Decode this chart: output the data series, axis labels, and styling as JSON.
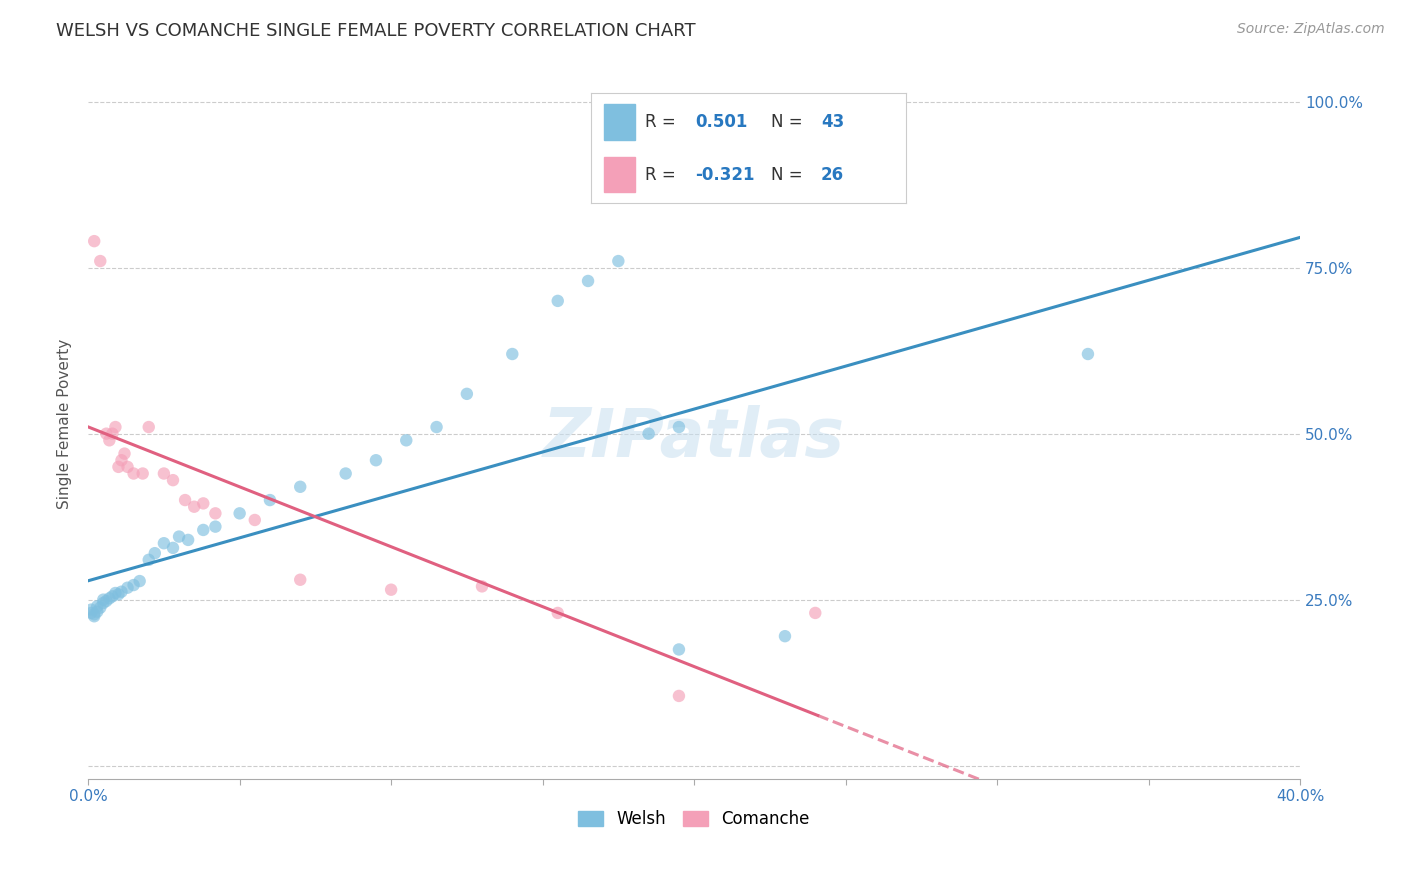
{
  "title": "WELSH VS COMANCHE SINGLE FEMALE POVERTY CORRELATION CHART",
  "source": "Source: ZipAtlas.com",
  "ylabel_label": "Single Female Poverty",
  "watermark": "ZIPatlas",
  "xlim": [
    0.0,
    0.4
  ],
  "ylim": [
    -0.02,
    1.05
  ],
  "welsh_color": "#7fbfdf",
  "comanche_color": "#f4a0b8",
  "welsh_line_color": "#3a8fc0",
  "comanche_line_color": "#e06080",
  "welsh_R": 0.501,
  "welsh_N": 43,
  "comanche_R": -0.321,
  "comanche_N": 26,
  "welsh_scatter": [
    [
      0.001,
      0.23
    ],
    [
      0.001,
      0.235
    ],
    [
      0.002,
      0.225
    ],
    [
      0.002,
      0.228
    ],
    [
      0.003,
      0.232
    ],
    [
      0.003,
      0.24
    ],
    [
      0.004,
      0.238
    ],
    [
      0.005,
      0.245
    ],
    [
      0.005,
      0.25
    ],
    [
      0.006,
      0.248
    ],
    [
      0.007,
      0.252
    ],
    [
      0.008,
      0.255
    ],
    [
      0.009,
      0.26
    ],
    [
      0.01,
      0.258
    ],
    [
      0.011,
      0.262
    ],
    [
      0.013,
      0.268
    ],
    [
      0.015,
      0.272
    ],
    [
      0.017,
      0.278
    ],
    [
      0.02,
      0.31
    ],
    [
      0.022,
      0.32
    ],
    [
      0.025,
      0.335
    ],
    [
      0.028,
      0.328
    ],
    [
      0.03,
      0.345
    ],
    [
      0.033,
      0.34
    ],
    [
      0.038,
      0.355
    ],
    [
      0.042,
      0.36
    ],
    [
      0.05,
      0.38
    ],
    [
      0.06,
      0.4
    ],
    [
      0.07,
      0.42
    ],
    [
      0.085,
      0.44
    ],
    [
      0.095,
      0.46
    ],
    [
      0.105,
      0.49
    ],
    [
      0.115,
      0.51
    ],
    [
      0.125,
      0.56
    ],
    [
      0.14,
      0.62
    ],
    [
      0.155,
      0.7
    ],
    [
      0.165,
      0.73
    ],
    [
      0.175,
      0.76
    ],
    [
      0.185,
      0.5
    ],
    [
      0.195,
      0.51
    ],
    [
      0.195,
      0.175
    ],
    [
      0.23,
      0.195
    ],
    [
      0.33,
      0.62
    ]
  ],
  "comanche_scatter": [
    [
      0.002,
      0.79
    ],
    [
      0.004,
      0.76
    ],
    [
      0.006,
      0.5
    ],
    [
      0.007,
      0.49
    ],
    [
      0.008,
      0.5
    ],
    [
      0.009,
      0.51
    ],
    [
      0.01,
      0.45
    ],
    [
      0.011,
      0.46
    ],
    [
      0.012,
      0.47
    ],
    [
      0.013,
      0.45
    ],
    [
      0.015,
      0.44
    ],
    [
      0.018,
      0.44
    ],
    [
      0.02,
      0.51
    ],
    [
      0.025,
      0.44
    ],
    [
      0.028,
      0.43
    ],
    [
      0.032,
      0.4
    ],
    [
      0.035,
      0.39
    ],
    [
      0.038,
      0.395
    ],
    [
      0.042,
      0.38
    ],
    [
      0.055,
      0.37
    ],
    [
      0.07,
      0.28
    ],
    [
      0.1,
      0.265
    ],
    [
      0.13,
      0.27
    ],
    [
      0.155,
      0.23
    ],
    [
      0.195,
      0.105
    ],
    [
      0.24,
      0.23
    ]
  ],
  "title_fontsize": 13,
  "label_fontsize": 11,
  "tick_fontsize": 11,
  "legend_fontsize": 12,
  "source_fontsize": 10,
  "grid_color": "#cccccc",
  "background_color": "#ffffff",
  "scatter_size": 80,
  "scatter_alpha": 0.65
}
